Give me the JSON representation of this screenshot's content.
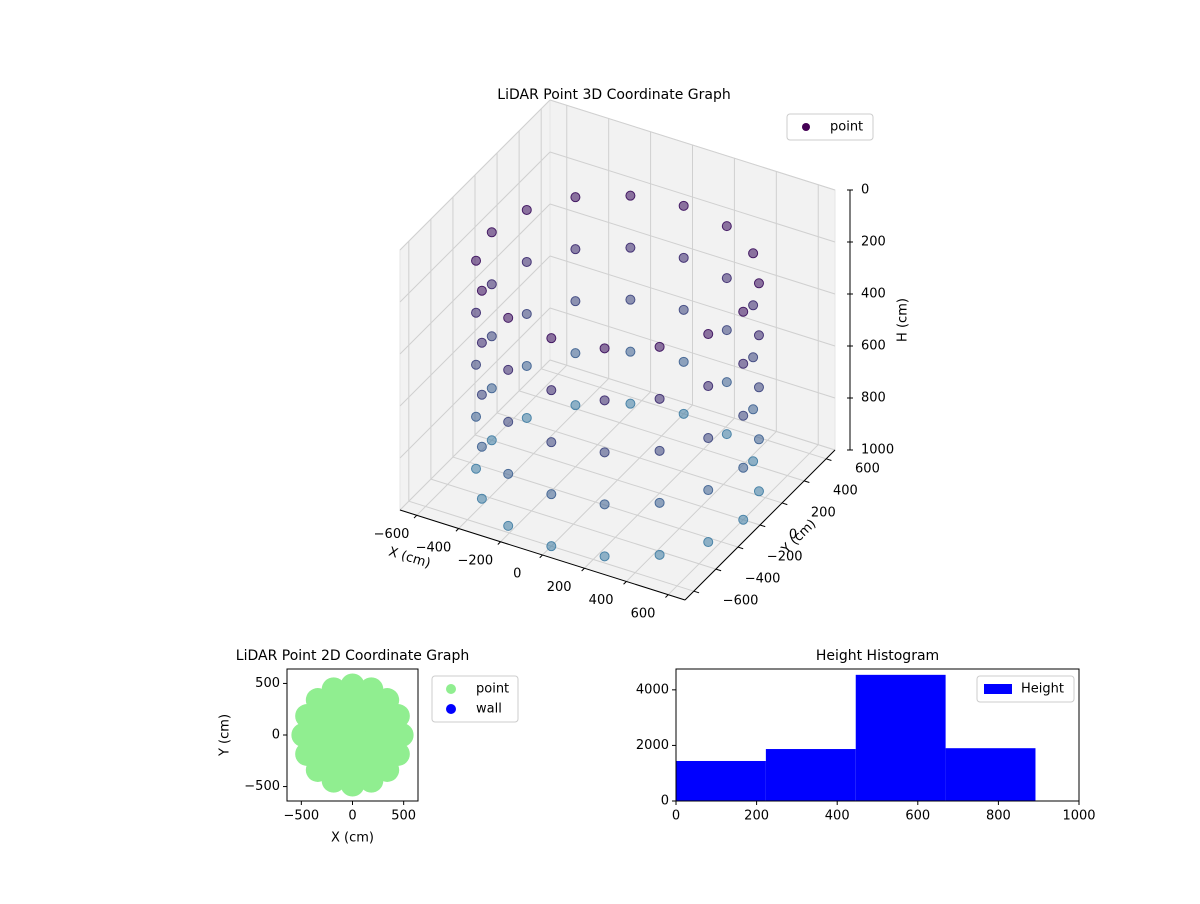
{
  "chart_data": [
    {
      "type": "scatter3d",
      "title": "LiDAR Point 3D Coordinate Graph",
      "xlabel": "X (cm)",
      "ylabel": "Y (cm)",
      "zlabel": "H (cm)",
      "name": "point",
      "color_range": [
        "#440154",
        "#4a84a8"
      ],
      "xlim": [
        -680,
        680
      ],
      "ylim": [
        -680,
        680
      ],
      "zlim": [
        1000,
        0
      ],
      "xticks": [
        {
          "value": -600,
          "label": "−600"
        },
        {
          "value": -400,
          "label": "−400"
        },
        {
          "value": -200,
          "label": "−200"
        },
        0,
        200,
        400,
        600
      ],
      "yticks": [
        {
          "value": -600,
          "label": "−600"
        },
        {
          "value": -400,
          "label": "−400"
        },
        {
          "value": -200,
          "label": "−200"
        },
        0,
        200,
        400,
        600
      ],
      "zticks": [
        0,
        200,
        400,
        600,
        800,
        1000
      ],
      "grid": true,
      "x": [
        600,
        554,
        424,
        230,
        0,
        -230,
        -424,
        -554,
        -600,
        -554,
        -424,
        -230,
        0,
        230,
        424,
        554,
        600,
        554,
        424,
        230,
        0,
        -230,
        -424,
        -554,
        -600,
        -554,
        -424,
        -230,
        0,
        230,
        424,
        554,
        600,
        554,
        424,
        230,
        0,
        -230,
        -424,
        -554,
        -600,
        -554,
        -424,
        -230,
        0,
        230,
        424,
        554,
        600,
        554,
        424,
        230,
        0,
        -230,
        -424,
        -554,
        -600,
        -554,
        -424,
        -230,
        0,
        230,
        424,
        554,
        600,
        554,
        424,
        230,
        0,
        -230,
        -424,
        -554,
        -600,
        -554,
        -424,
        -230,
        0,
        230,
        424,
        554
      ],
      "y": [
        0,
        230,
        424,
        554,
        600,
        554,
        424,
        230,
        0,
        -230,
        -424,
        -554,
        -600,
        -554,
        -424,
        -230,
        0,
        230,
        424,
        554,
        600,
        554,
        424,
        230,
        0,
        -230,
        -424,
        -554,
        -600,
        -554,
        -424,
        -230,
        0,
        230,
        424,
        554,
        600,
        554,
        424,
        230,
        0,
        -230,
        -424,
        -554,
        -600,
        -554,
        -424,
        -230,
        0,
        230,
        424,
        554,
        600,
        554,
        424,
        230,
        0,
        -230,
        -424,
        -554,
        -600,
        -554,
        -424,
        -230,
        0,
        230,
        424,
        554,
        600,
        554,
        424,
        230,
        0,
        -230,
        -424,
        -554,
        -600,
        -554,
        -424,
        -230
      ],
      "z": [
        200,
        200,
        200,
        200,
        200,
        200,
        200,
        200,
        200,
        200,
        200,
        200,
        200,
        200,
        200,
        200,
        400,
        400,
        400,
        400,
        400,
        400,
        400,
        400,
        400,
        400,
        400,
        400,
        400,
        400,
        400,
        400,
        600,
        600,
        600,
        600,
        600,
        600,
        600,
        600,
        600,
        600,
        600,
        600,
        600,
        600,
        600,
        600,
        800,
        800,
        800,
        800,
        800,
        800,
        800,
        800,
        800,
        800,
        800,
        800,
        800,
        800,
        800,
        800,
        1000,
        1000,
        1000,
        1000,
        1000,
        1000,
        1000,
        1000,
        1000,
        1000,
        1000,
        1000,
        1000,
        1000,
        1000,
        1000
      ]
    },
    {
      "type": "scatter",
      "title": "LiDAR Point 2D Coordinate Graph",
      "xlabel": "X (cm)",
      "ylabel": "Y (cm)",
      "xlim": [
        -640,
        640
      ],
      "ylim": [
        -640,
        640
      ],
      "xticks": [
        {
          "value": -500,
          "label": "−500"
        },
        0,
        500
      ],
      "yticks": [
        {
          "value": -500,
          "label": "−500"
        },
        0,
        500
      ],
      "series": [
        {
          "name": "point",
          "color": "#90ee90",
          "x": [
            480,
            443,
            339,
            184,
            0,
            -184,
            -339,
            -443,
            -480,
            -443,
            -339,
            -184,
            0,
            184,
            339,
            443,
            320,
            277,
            160,
            0,
            -160,
            -277,
            -320,
            -277,
            -160,
            0,
            160,
            277,
            160,
            80,
            -80,
            -160,
            -80,
            80,
            0
          ],
          "y": [
            0,
            184,
            339,
            443,
            480,
            443,
            339,
            184,
            0,
            -184,
            -339,
            -443,
            -480,
            -443,
            -339,
            -184,
            0,
            160,
            277,
            320,
            277,
            160,
            0,
            -160,
            -277,
            -320,
            -277,
            -160,
            0,
            139,
            139,
            0,
            -139,
            -139,
            0
          ]
        },
        {
          "name": "wall",
          "color": "#0000ff",
          "x": [],
          "y": []
        }
      ]
    },
    {
      "type": "histogram",
      "title": "Height Histogram",
      "bins": [
        0,
        223,
        446,
        669,
        892
      ],
      "xlim": [
        0,
        1000
      ],
      "ylim": [
        0,
        4750
      ],
      "xticks": [
        0,
        200,
        400,
        600,
        800,
        1000
      ],
      "yticks": [
        0,
        2000,
        4000
      ],
      "series": [
        {
          "name": "Height",
          "color": "#0000ff",
          "values": [
            1440,
            1870,
            4540,
            1900
          ]
        }
      ]
    }
  ]
}
